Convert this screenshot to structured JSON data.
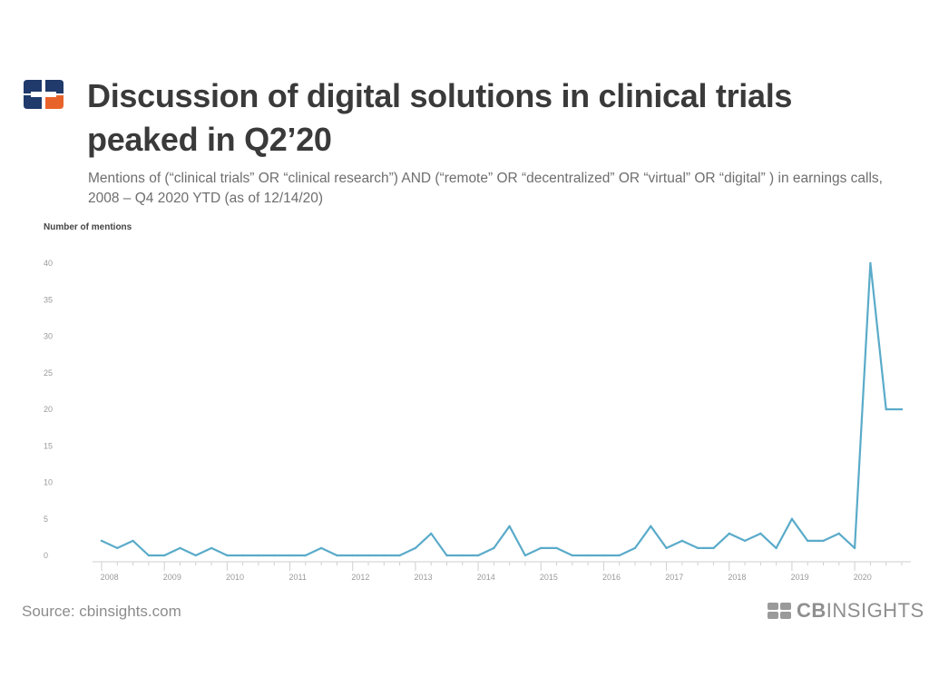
{
  "header": {
    "title": "Discussion of digital solutions in clinical trials peaked in Q2’20",
    "subtitle": "Mentions of (“clinical trials” OR “clinical research”) AND (“remote” OR “decentralized” OR “virtual” OR “digital” ) in earnings calls, 2008 – Q4 2020 YTD (as of 12/14/20)"
  },
  "footer": {
    "source": "Source: cbinsights.com",
    "brand_bold": "CB",
    "brand_light": "INSIGHTS"
  },
  "colors": {
    "line": "#5aabc9",
    "logo_blue": "#1f3a6b",
    "logo_orange": "#e8632b",
    "grid_text": "#9a9a9a"
  },
  "chart_data": {
    "type": "line",
    "title": "Discussion of digital solutions in clinical trials peaked in Q2’20",
    "ylabel": "Number of mentions",
    "xlabel": "",
    "ylim": [
      0,
      40
    ],
    "yticks": [
      0,
      5,
      10,
      15,
      20,
      25,
      30,
      35,
      40
    ],
    "grid": false,
    "year_labels": [
      "2008",
      "2009",
      "2010",
      "2011",
      "2012",
      "2013",
      "2014",
      "2015",
      "2016",
      "2017",
      "2018",
      "2019",
      "2020"
    ],
    "x": [
      "Q1 2008",
      "Q2 2008",
      "Q3 2008",
      "Q4 2008",
      "Q1 2009",
      "Q2 2009",
      "Q3 2009",
      "Q4 2009",
      "Q1 2010",
      "Q2 2010",
      "Q3 2010",
      "Q4 2010",
      "Q1 2011",
      "Q2 2011",
      "Q3 2011",
      "Q4 2011",
      "Q1 2012",
      "Q2 2012",
      "Q3 2012",
      "Q4 2012",
      "Q1 2013",
      "Q2 2013",
      "Q3 2013",
      "Q4 2013",
      "Q1 2014",
      "Q2 2014",
      "Q3 2014",
      "Q4 2014",
      "Q1 2015",
      "Q2 2015",
      "Q3 2015",
      "Q4 2015",
      "Q1 2016",
      "Q2 2016",
      "Q3 2016",
      "Q4 2016",
      "Q1 2017",
      "Q2 2017",
      "Q3 2017",
      "Q4 2017",
      "Q1 2018",
      "Q2 2018",
      "Q3 2018",
      "Q4 2018",
      "Q1 2019",
      "Q2 2019",
      "Q3 2019",
      "Q4 2019",
      "Q1 2020",
      "Q2 2020",
      "Q3 2020",
      "Q4 2020"
    ],
    "series": [
      {
        "values": [
          2,
          1,
          2,
          0,
          0,
          1,
          0,
          1,
          0,
          0,
          0,
          0,
          0,
          0,
          1,
          0,
          0,
          0,
          0,
          0,
          1,
          3,
          0,
          0,
          0,
          1,
          4,
          0,
          1,
          1,
          0,
          0,
          0,
          0,
          1,
          4,
          1,
          2,
          1,
          1,
          3,
          2,
          3,
          1,
          5,
          2,
          2,
          3,
          1,
          40,
          20,
          20
        ]
      }
    ]
  }
}
